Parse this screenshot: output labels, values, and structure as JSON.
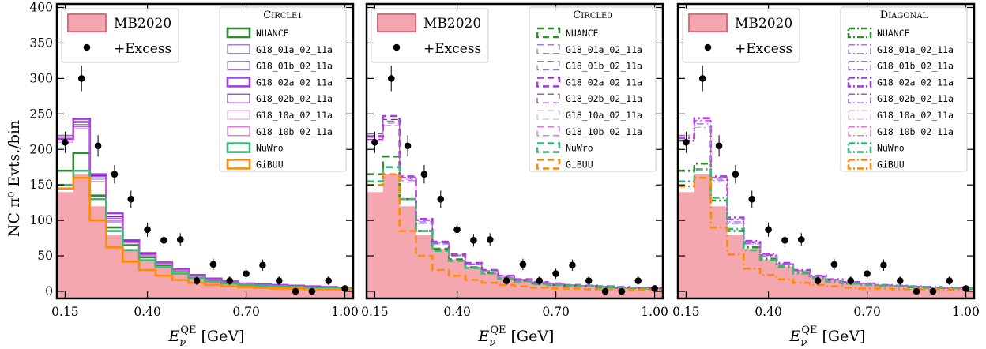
{
  "figure": {
    "ylabel": "NC π⁰ Evts./bin",
    "xlabel_main": "E",
    "xlabel_sub": "ν",
    "xlabel_sup": "QE",
    "xlabel_unit": "[GeV]"
  },
  "chart_data": [
    {
      "type": "bar",
      "panel": "left",
      "legend_title": "Circle1",
      "line_style": "solid",
      "xlim": [
        0.125,
        1.025
      ],
      "ylim": [
        -10,
        405
      ],
      "xticks": [
        0.15,
        0.4,
        0.7,
        1.0
      ],
      "xtick_labels": [
        "0.15",
        "0.40",
        "0.70",
        "1.00"
      ],
      "yticks": [
        0,
        50,
        100,
        150,
        200,
        250,
        300,
        350,
        400
      ],
      "ytick_labels": [
        "0",
        "50",
        "100",
        "150",
        "200",
        "250",
        "300",
        "350",
        "400"
      ],
      "bin_edges": [
        0.125,
        0.175,
        0.225,
        0.275,
        0.325,
        0.375,
        0.425,
        0.475,
        0.525,
        0.575,
        0.625,
        0.675,
        0.725,
        0.775,
        0.825,
        0.875,
        0.925,
        0.975,
        1.025
      ],
      "mb2020": {
        "name": "MB2020",
        "color": "#f4a7ae",
        "values": [
          140,
          165,
          120,
          80,
          60,
          45,
          35,
          26,
          20,
          15,
          11,
          9,
          8,
          7,
          6,
          5,
          5,
          4
        ]
      },
      "excess": {
        "name": "+Excess",
        "x": [
          0.15,
          0.2,
          0.25,
          0.3,
          0.35,
          0.4,
          0.45,
          0.5,
          0.55,
          0.6,
          0.65,
          0.7,
          0.75,
          0.8,
          0.85,
          0.9,
          0.95,
          1.0
        ],
        "y": [
          210,
          300,
          205,
          165,
          130,
          87,
          72,
          73,
          15,
          38,
          15,
          25,
          37,
          15,
          0,
          0,
          15,
          4
        ],
        "yerr": [
          15,
          18,
          15,
          13,
          12,
          10,
          9,
          9,
          6,
          8,
          6,
          7,
          8,
          6,
          4,
          4,
          6,
          4
        ]
      },
      "series": [
        {
          "name": "NUANCE",
          "color": "#2e8b2e",
          "width": 2.6,
          "values": [
            170,
            195,
            135,
            90,
            65,
            48,
            37,
            28,
            21,
            16,
            12,
            10,
            9,
            8,
            7,
            6,
            5,
            5
          ]
        },
        {
          "name": "G18_01a_02_11a",
          "color": "#7d55d6",
          "width": 1.1,
          "values": [
            220,
            235,
            160,
            100,
            70,
            52,
            40,
            30,
            22,
            17,
            13,
            11,
            9,
            8,
            7,
            6,
            5,
            5
          ]
        },
        {
          "name": "G18_01b_02_11a",
          "color": "#9b6fe0",
          "width": 1.1,
          "values": [
            218,
            232,
            158,
            98,
            69,
            51,
            39,
            29,
            22,
            17,
            13,
            11,
            9,
            8,
            7,
            6,
            5,
            5
          ]
        },
        {
          "name": "G18_02a_02_11a",
          "color": "#a13fe0",
          "width": 2.6,
          "values": [
            215,
            243,
            165,
            110,
            72,
            54,
            41,
            31,
            23,
            18,
            14,
            11,
            10,
            9,
            8,
            7,
            6,
            5
          ]
        },
        {
          "name": "G18_02b_02_11a",
          "color": "#7a22b8",
          "width": 1.1,
          "values": [
            212,
            238,
            163,
            105,
            71,
            53,
            40,
            30,
            22,
            17,
            13,
            11,
            9,
            8,
            7,
            6,
            5,
            5
          ]
        },
        {
          "name": "G18_10a_02_11a",
          "color": "#e59be5",
          "width": 1.1,
          "values": [
            210,
            230,
            155,
            97,
            68,
            50,
            38,
            29,
            21,
            16,
            12,
            10,
            9,
            8,
            7,
            6,
            5,
            5
          ]
        },
        {
          "name": "G18_10b_02_11a",
          "color": "#cf4fd6",
          "width": 1.1,
          "values": [
            216,
            240,
            162,
            103,
            70,
            52,
            40,
            30,
            22,
            17,
            13,
            11,
            9,
            8,
            7,
            6,
            5,
            5
          ]
        },
        {
          "name": "NuWro",
          "color": "#3cb878",
          "width": 2.6,
          "values": [
            150,
            170,
            130,
            85,
            58,
            44,
            34,
            25,
            19,
            14,
            11,
            9,
            8,
            7,
            6,
            5,
            5,
            4
          ]
        },
        {
          "name": "GiBUU",
          "color": "#ff8c00",
          "width": 2.6,
          "values": [
            145,
            160,
            100,
            62,
            42,
            30,
            22,
            16,
            12,
            9,
            7,
            6,
            5,
            4,
            4,
            3,
            3,
            3
          ]
        }
      ]
    },
    {
      "type": "bar",
      "panel": "middle",
      "legend_title": "Circle0",
      "line_style": "dashed",
      "xlim": [
        0.125,
        1.025
      ],
      "ylim": [
        -10,
        405
      ],
      "xticks": [
        0.15,
        0.4,
        0.7,
        1.0
      ],
      "xtick_labels": [
        "0.15",
        "0.40",
        "0.70",
        "1.00"
      ],
      "yticks": [
        0,
        50,
        100,
        150,
        200,
        250,
        300,
        350,
        400
      ],
      "ytick_labels": [],
      "bin_edges": [
        0.125,
        0.175,
        0.225,
        0.275,
        0.325,
        0.375,
        0.425,
        0.475,
        0.525,
        0.575,
        0.625,
        0.675,
        0.725,
        0.775,
        0.825,
        0.875,
        0.925,
        0.975,
        1.025
      ],
      "mb2020": {
        "name": "MB2020",
        "color": "#f4a7ae",
        "values": [
          140,
          165,
          120,
          80,
          60,
          45,
          35,
          26,
          20,
          15,
          11,
          9,
          8,
          7,
          6,
          5,
          5,
          4
        ]
      },
      "excess": {
        "name": "+Excess",
        "x": [
          0.15,
          0.2,
          0.25,
          0.3,
          0.35,
          0.4,
          0.45,
          0.5,
          0.55,
          0.6,
          0.65,
          0.7,
          0.75,
          0.8,
          0.85,
          0.9,
          0.95,
          1.0
        ],
        "y": [
          210,
          300,
          205,
          165,
          130,
          87,
          72,
          73,
          15,
          38,
          15,
          25,
          37,
          15,
          0,
          0,
          15,
          4
        ],
        "yerr": [
          15,
          18,
          15,
          13,
          12,
          10,
          9,
          9,
          6,
          8,
          6,
          7,
          8,
          6,
          4,
          4,
          6,
          4
        ]
      },
      "series": [
        {
          "name": "NUANCE",
          "color": "#2e8b2e",
          "width": 2.6,
          "values": [
            165,
            190,
            130,
            85,
            60,
            45,
            34,
            26,
            19,
            15,
            11,
            9,
            8,
            7,
            6,
            5,
            5,
            4
          ]
        },
        {
          "name": "G18_01a_02_11a",
          "color": "#7d55d6",
          "width": 1.1,
          "values": [
            222,
            240,
            158,
            98,
            68,
            50,
            38,
            29,
            21,
            16,
            12,
            10,
            9,
            8,
            7,
            6,
            5,
            5
          ]
        },
        {
          "name": "G18_01b_02_11a",
          "color": "#9b6fe0",
          "width": 1.1,
          "values": [
            220,
            237,
            156,
            96,
            67,
            49,
            38,
            28,
            21,
            16,
            12,
            10,
            9,
            8,
            7,
            6,
            5,
            5
          ]
        },
        {
          "name": "G18_02a_02_11a",
          "color": "#a13fe0",
          "width": 2.6,
          "values": [
            218,
            247,
            162,
            102,
            70,
            52,
            40,
            30,
            22,
            17,
            13,
            11,
            9,
            8,
            7,
            6,
            5,
            5
          ]
        },
        {
          "name": "G18_02b_02_11a",
          "color": "#7a22b8",
          "width": 1.1,
          "values": [
            214,
            242,
            160,
            100,
            69,
            51,
            39,
            29,
            21,
            16,
            12,
            10,
            9,
            8,
            7,
            6,
            5,
            5
          ]
        },
        {
          "name": "G18_10a_02_11a",
          "color": "#e59be5",
          "width": 1.1,
          "values": [
            212,
            234,
            154,
            95,
            66,
            49,
            37,
            28,
            21,
            16,
            12,
            10,
            9,
            8,
            7,
            6,
            5,
            5
          ]
        },
        {
          "name": "G18_10b_02_11a",
          "color": "#cf4fd6",
          "width": 1.1,
          "values": [
            217,
            244,
            161,
            101,
            69,
            51,
            39,
            29,
            22,
            17,
            13,
            11,
            9,
            8,
            7,
            6,
            5,
            5
          ]
        },
        {
          "name": "NuWro",
          "color": "#3cb878",
          "width": 2.6,
          "values": [
            155,
            175,
            130,
            85,
            57,
            43,
            33,
            25,
            18,
            14,
            10,
            9,
            8,
            7,
            6,
            5,
            4,
            4
          ]
        },
        {
          "name": "GiBUU",
          "color": "#ff8c00",
          "width": 2.6,
          "values": [
            150,
            165,
            85,
            50,
            30,
            22,
            16,
            12,
            9,
            7,
            5,
            4,
            4,
            3,
            3,
            3,
            2,
            2
          ]
        }
      ]
    },
    {
      "type": "bar",
      "panel": "right",
      "legend_title": "Diagonal",
      "line_style": "dashdot",
      "xlim": [
        0.125,
        1.025
      ],
      "ylim": [
        -10,
        405
      ],
      "xticks": [
        0.15,
        0.4,
        0.7,
        1.0
      ],
      "xtick_labels": [
        "0.15",
        "0.40",
        "0.70",
        "1.00"
      ],
      "yticks": [
        0,
        50,
        100,
        150,
        200,
        250,
        300,
        350,
        400
      ],
      "ytick_labels": [],
      "bin_edges": [
        0.125,
        0.175,
        0.225,
        0.275,
        0.325,
        0.375,
        0.425,
        0.475,
        0.525,
        0.575,
        0.625,
        0.675,
        0.725,
        0.775,
        0.825,
        0.875,
        0.925,
        0.975,
        1.025
      ],
      "mb2020": {
        "name": "MB2020",
        "color": "#f4a7ae",
        "values": [
          140,
          165,
          120,
          80,
          60,
          45,
          35,
          26,
          20,
          15,
          11,
          9,
          8,
          7,
          6,
          5,
          5,
          4
        ]
      },
      "excess": {
        "name": "+Excess",
        "x": [
          0.15,
          0.2,
          0.25,
          0.3,
          0.35,
          0.4,
          0.45,
          0.5,
          0.55,
          0.6,
          0.65,
          0.7,
          0.75,
          0.8,
          0.85,
          0.9,
          0.95,
          1.0
        ],
        "y": [
          210,
          300,
          205,
          165,
          130,
          87,
          72,
          73,
          15,
          38,
          15,
          25,
          37,
          15,
          0,
          0,
          15,
          4
        ],
        "yerr": [
          15,
          18,
          15,
          13,
          12,
          10,
          9,
          9,
          6,
          8,
          6,
          7,
          8,
          6,
          4,
          4,
          6,
          4
        ]
      },
      "series": [
        {
          "name": "NUANCE",
          "color": "#2e8b2e",
          "width": 2.6,
          "values": [
            170,
            180,
            128,
            85,
            62,
            46,
            35,
            27,
            20,
            15,
            11,
            10,
            8,
            7,
            6,
            5,
            5,
            4
          ]
        },
        {
          "name": "G18_01a_02_11a",
          "color": "#7d55d6",
          "width": 1.1,
          "values": [
            220,
            236,
            158,
            98,
            68,
            50,
            38,
            29,
            21,
            16,
            12,
            10,
            9,
            8,
            7,
            6,
            5,
            5
          ]
        },
        {
          "name": "G18_01b_02_11a",
          "color": "#9b6fe0",
          "width": 1.1,
          "values": [
            218,
            233,
            156,
            96,
            67,
            49,
            38,
            28,
            21,
            16,
            12,
            10,
            9,
            8,
            7,
            6,
            5,
            5
          ]
        },
        {
          "name": "G18_02a_02_11a",
          "color": "#a13fe0",
          "width": 2.6,
          "values": [
            216,
            244,
            162,
            104,
            71,
            53,
            40,
            30,
            22,
            17,
            13,
            11,
            9,
            8,
            7,
            6,
            5,
            5
          ]
        },
        {
          "name": "G18_02b_02_11a",
          "color": "#7a22b8",
          "width": 1.1,
          "values": [
            213,
            239,
            160,
            101,
            69,
            51,
            39,
            29,
            21,
            16,
            12,
            10,
            9,
            8,
            7,
            6,
            5,
            5
          ]
        },
        {
          "name": "G18_10a_02_11a",
          "color": "#e59be5",
          "width": 1.1,
          "values": [
            211,
            231,
            154,
            95,
            66,
            49,
            37,
            28,
            21,
            16,
            12,
            10,
            9,
            8,
            7,
            6,
            5,
            5
          ]
        },
        {
          "name": "G18_10b_02_11a",
          "color": "#cf4fd6",
          "width": 1.1,
          "values": [
            216,
            241,
            161,
            102,
            70,
            52,
            39,
            29,
            22,
            17,
            13,
            11,
            9,
            8,
            7,
            6,
            5,
            5
          ]
        },
        {
          "name": "NuWro",
          "color": "#3cb878",
          "width": 2.6,
          "values": [
            155,
            172,
            132,
            88,
            58,
            44,
            34,
            25,
            19,
            14,
            11,
            9,
            8,
            7,
            6,
            5,
            5,
            4
          ]
        },
        {
          "name": "GiBUU",
          "color": "#ff8c00",
          "width": 2.6,
          "values": [
            148,
            160,
            90,
            52,
            32,
            23,
            17,
            12,
            9,
            7,
            5,
            4,
            4,
            3,
            3,
            3,
            2,
            2
          ]
        }
      ]
    }
  ]
}
